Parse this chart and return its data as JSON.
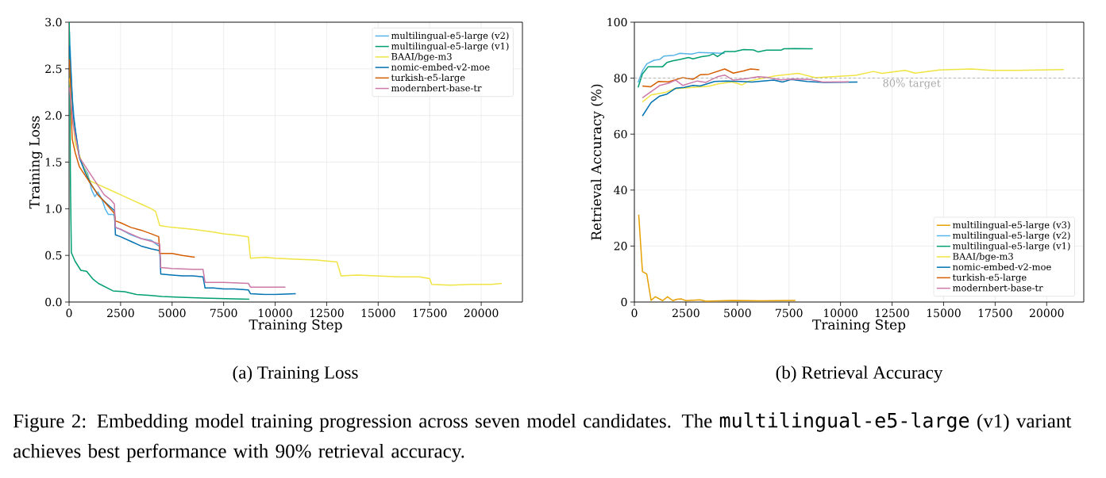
{
  "chart_data": [
    {
      "type": "line",
      "title": "(a) Training Loss",
      "xlabel": "Training Step",
      "ylabel": "Training Loss",
      "xlim": [
        0,
        22000
      ],
      "xticks": [
        0,
        2500,
        5000,
        7500,
        10000,
        12500,
        15000,
        17500,
        20000
      ],
      "ylim": [
        0,
        3
      ],
      "yticks": [
        {
          "value": 0,
          "label": "0.0"
        },
        0.5,
        {
          "value": 1,
          "label": "1.0"
        },
        1.5,
        {
          "value": 2,
          "label": "2.0"
        },
        2.5,
        {
          "value": 3,
          "label": "3.0"
        }
      ],
      "grid": true,
      "legend": "top right",
      "series": [
        {
          "name": "multilingual-e5-large (v2)",
          "color": "#56b4e9",
          "x": [
            20,
            150,
            300,
            500,
            700,
            900,
            1100,
            1250,
            1400,
            1600,
            1750,
            1900,
            2100,
            2200,
            2250,
            2500,
            3000,
            3500,
            4000,
            4350
          ],
          "values": [
            2.9,
            2.2,
            1.85,
            1.55,
            1.45,
            1.38,
            1.2,
            1.13,
            1.18,
            1.1,
            1.0,
            0.94,
            0.94,
            0.93,
            0.8,
            0.78,
            0.72,
            0.68,
            0.66,
            0.6
          ]
        },
        {
          "name": "multilingual-e5-large (v1)",
          "color": "#009e73",
          "x": [
            10,
            70,
            110,
            285,
            570,
            850,
            1140,
            1420,
            2130,
            2700,
            3270,
            3980,
            4500,
            5400,
            6830,
            8750
          ],
          "values": [
            3.0,
            1.22,
            0.53,
            0.44,
            0.34,
            0.33,
            0.25,
            0.2,
            0.12,
            0.11,
            0.08,
            0.07,
            0.06,
            0.05,
            0.04,
            0.03
          ]
        },
        {
          "name": "BAAI/bge-m3",
          "color": "#f0e442",
          "x": [
            20,
            300,
            700,
            1000,
            1500,
            2000,
            2500,
            3000,
            3500,
            4000,
            4200,
            4400,
            5000,
            6000,
            7000,
            7500,
            8000,
            8700,
            8800,
            9500,
            10000,
            11000,
            12000,
            13000,
            13200,
            14000,
            15000,
            16000,
            17000,
            17500,
            17600,
            18500,
            19500,
            20500,
            21000
          ],
          "values": [
            2.4,
            1.7,
            1.45,
            1.3,
            1.25,
            1.2,
            1.15,
            1.1,
            1.05,
            1.0,
            0.97,
            0.82,
            0.8,
            0.78,
            0.75,
            0.73,
            0.72,
            0.7,
            0.47,
            0.48,
            0.47,
            0.46,
            0.45,
            0.43,
            0.28,
            0.29,
            0.28,
            0.27,
            0.27,
            0.25,
            0.19,
            0.18,
            0.19,
            0.19,
            0.2
          ]
        },
        {
          "name": "nomic-embed-v2-moe",
          "color": "#0072b2",
          "x": [
            20,
            200,
            500,
            800,
            1100,
            1400,
            1700,
            2000,
            2200,
            2250,
            2500,
            3000,
            3500,
            4000,
            4400,
            4450,
            5000,
            5500,
            6000,
            6500,
            6600,
            7000,
            7500,
            8000,
            8700,
            8800,
            9500,
            10000,
            11000
          ],
          "values": [
            2.75,
            2.0,
            1.55,
            1.38,
            1.25,
            1.15,
            1.08,
            1.02,
            0.98,
            0.72,
            0.7,
            0.65,
            0.6,
            0.57,
            0.55,
            0.3,
            0.29,
            0.28,
            0.28,
            0.27,
            0.15,
            0.15,
            0.14,
            0.14,
            0.13,
            0.09,
            0.08,
            0.08,
            0.09
          ]
        },
        {
          "name": "turkish-e5-large",
          "color": "#d55e00",
          "x": [
            20,
            150,
            300,
            500,
            800,
            1100,
            1400,
            1700,
            2000,
            2200,
            2250,
            2500,
            3000,
            3500,
            4000,
            4350,
            4400,
            5000,
            5500,
            6100
          ],
          "values": [
            2.6,
            1.75,
            1.6,
            1.45,
            1.35,
            1.25,
            1.15,
            1.08,
            1.0,
            0.95,
            0.87,
            0.85,
            0.8,
            0.77,
            0.73,
            0.7,
            0.52,
            0.52,
            0.5,
            0.48
          ]
        },
        {
          "name": "modernbert-base-tr",
          "color": "#cc79a7",
          "x": [
            20,
            200,
            500,
            800,
            1100,
            1400,
            1700,
            2000,
            2200,
            2250,
            2500,
            3000,
            3500,
            4000,
            4400,
            4450,
            5000,
            6000,
            6500,
            6600,
            7500,
            8700,
            8800,
            9500,
            10500
          ],
          "values": [
            2.3,
            1.9,
            1.55,
            1.45,
            1.35,
            1.25,
            1.15,
            1.1,
            1.05,
            0.8,
            0.78,
            0.73,
            0.68,
            0.65,
            0.62,
            0.37,
            0.36,
            0.35,
            0.35,
            0.21,
            0.21,
            0.2,
            0.16,
            0.16,
            0.16
          ]
        }
      ],
      "annotations": [
        "Figure 2: Embedding model training progression across seven model candidates. The",
        "multilingual-e5-large",
        "(v1) variant achieves best performance with 90% retrieval accuracy."
      ]
    },
    {
      "type": "line",
      "title": "(b) Retrieval Accuracy",
      "xlabel": "Training Step",
      "ylabel": "Retrieval Accuracy (%)",
      "xlim": [
        0,
        21800
      ],
      "xticks": [
        0,
        2500,
        5000,
        7500,
        10000,
        12500,
        15000,
        17500,
        20000
      ],
      "ylim": [
        0,
        100
      ],
      "yticks": [
        0,
        20,
        40,
        60,
        80,
        100
      ],
      "grid": true,
      "legend": "bottom right",
      "ref_lines": [
        {
          "axis": "y",
          "value": 80,
          "label": "80% target",
          "color": "#aaaaaa",
          "line_style": "dashed"
        }
      ],
      "series": [
        {
          "name": "multilingual-e5-large (v3)",
          "color": "#e69f00",
          "x": [
            210,
            390,
            600,
            810,
            1020,
            1370,
            1610,
            1860,
            2070,
            2280,
            2490,
            3190,
            3470,
            4800,
            6130,
            7810
          ],
          "values": [
            31.2,
            10.9,
            10.0,
            0.6,
            1.9,
            0.5,
            1.9,
            0.5,
            1.0,
            1.1,
            0.5,
            0.8,
            0.3,
            0.6,
            0.4,
            0.6
          ]
        },
        {
          "name": "multilingual-e5-large (v2)",
          "color": "#56b4e9",
          "x": [
            180,
            390,
            600,
            950,
            1230,
            1440,
            1930,
            2210,
            2770,
            3120,
            3750,
            4380
          ],
          "values": [
            78.5,
            82.6,
            85.1,
            86.4,
            86.7,
            87.9,
            88.2,
            88.9,
            88.6,
            89.2,
            89.0,
            88.9
          ]
        },
        {
          "name": "multilingual-e5-large (v1)",
          "color": "#009e73",
          "x": [
            180,
            390,
            670,
            1090,
            1370,
            1580,
            1860,
            2210,
            2630,
            2840,
            3260,
            3610,
            3820,
            4030,
            4380,
            4870,
            5290,
            5780,
            5990,
            6410,
            7110,
            7250,
            7810,
            8650
          ],
          "values": [
            76.7,
            81.5,
            84.1,
            84.1,
            84.1,
            85.6,
            86.2,
            86.7,
            87.4,
            86.9,
            87.7,
            88.0,
            88.7,
            87.7,
            89.5,
            89.5,
            90.2,
            90.1,
            89.4,
            90.0,
            90.0,
            90.5,
            90.6,
            90.5
          ]
        },
        {
          "name": "BAAI/bge-m3",
          "color": "#f0e442",
          "x": [
            390,
            810,
            1510,
            1930,
            2840,
            3610,
            4030,
            4730,
            5220,
            5570,
            6830,
            7950,
            8790,
            10750,
            11590,
            12010,
            13130,
            13620,
            14810,
            16350,
            17330,
            18590,
            20830
          ],
          "values": [
            71.5,
            74.0,
            74.9,
            76.2,
            76.7,
            77.1,
            77.9,
            78.7,
            77.6,
            79.0,
            80.8,
            81.7,
            80.2,
            81.0,
            82.4,
            81.7,
            82.8,
            81.8,
            82.9,
            83.3,
            82.8,
            82.8,
            83.1
          ]
        },
        {
          "name": "nomic-embed-v2-moe",
          "color": "#0072b2",
          "x": [
            390,
            810,
            1230,
            1580,
            2000,
            2420,
            2840,
            3190,
            3890,
            4450,
            5150,
            5710,
            6760,
            7180,
            7600,
            8370,
            9210,
            10820
          ],
          "values": [
            66.5,
            71.3,
            73.6,
            74.3,
            76.4,
            76.7,
            77.4,
            77.2,
            78.8,
            79.0,
            78.8,
            78.6,
            79.3,
            78.6,
            79.5,
            78.8,
            78.5,
            78.6
          ]
        },
        {
          "name": "turkish-e5-large",
          "color": "#d55e00",
          "x": [
            390,
            780,
            1160,
            1650,
            2350,
            2840,
            3190,
            3610,
            4380,
            4800,
            5290,
            5640,
            6060
          ],
          "values": [
            77.2,
            76.9,
            78.8,
            78.7,
            80.2,
            79.6,
            81.2,
            81.4,
            83.3,
            81.8,
            82.6,
            83.3,
            83.0
          ]
        },
        {
          "name": "modernbert-base-tr",
          "color": "#cc79a7",
          "x": [
            390,
            1230,
            1650,
            2000,
            2350,
            3050,
            3470,
            4030,
            4380,
            4800,
            5430,
            6010,
            6410,
            7110,
            7670,
            8550,
            9130,
            10400
          ],
          "values": [
            73.0,
            77.4,
            78.2,
            79.3,
            77.4,
            79.0,
            78.5,
            80.5,
            81.1,
            79.3,
            79.8,
            80.5,
            80.3,
            79.4,
            79.7,
            79.5,
            78.6,
            78.7
          ]
        }
      ]
    }
  ]
}
